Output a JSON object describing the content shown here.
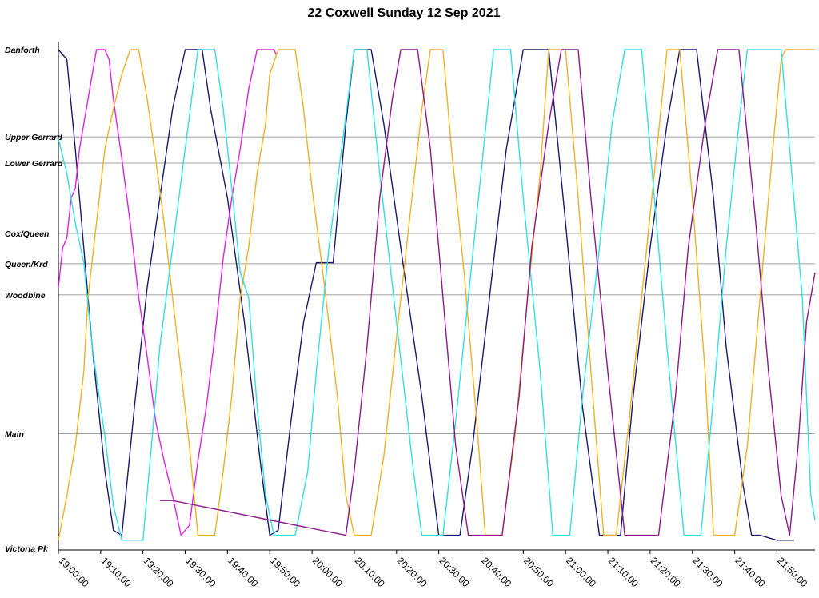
{
  "chart_data": {
    "type": "line",
    "title": "22 Coxwell Sunday 12 Sep 2021",
    "x_axis": {
      "kind": "time",
      "range": [
        "19:00:00",
        "21:59:00"
      ],
      "ticks": [
        "19:00:00",
        "19:10:00",
        "19:20:00",
        "19:30:00",
        "19:40:00",
        "19:50:00",
        "20:00:00",
        "20:10:00",
        "20:20:00",
        "20:30:00",
        "20:40:00",
        "20:50:00",
        "21:00:00",
        "21:10:00",
        "21:20:00",
        "21:30:00",
        "21:40:00",
        "21:50:00"
      ]
    },
    "y_axis": {
      "kind": "stops",
      "stops": [
        {
          "name": "Danforth",
          "pos": 0
        },
        {
          "name": "Upper Gerrard",
          "pos": 0.176
        },
        {
          "name": "Lower Gerrard",
          "pos": 0.229
        },
        {
          "name": "Cox/Queen",
          "pos": 0.371
        },
        {
          "name": "Queen/Krd",
          "pos": 0.432
        },
        {
          "name": "Woodbine",
          "pos": 0.495
        },
        {
          "name": "Main",
          "pos": 0.775
        },
        {
          "name": "Victoria Pk",
          "pos": 1.0
        }
      ],
      "grid": true
    },
    "series": [
      {
        "color": "#1a1a6e",
        "points": [
          [
            "19:00:00",
            0
          ],
          [
            "19:02:00",
            0.02
          ],
          [
            "19:04:00",
            0.2
          ],
          [
            "19:06:00",
            0.4
          ],
          [
            "19:08:00",
            0.6
          ],
          [
            "19:11:00",
            0.85
          ],
          [
            "19:13:00",
            0.97
          ],
          [
            "19:15:00",
            0.98
          ],
          [
            "19:18:00",
            0.72
          ],
          [
            "19:21:00",
            0.48
          ],
          [
            "19:24:00",
            0.3
          ],
          [
            "19:27:00",
            0.12
          ],
          [
            "19:30:00",
            0
          ],
          [
            "19:34:00",
            0
          ],
          [
            "19:36:00",
            0.12
          ],
          [
            "19:40:00",
            0.3
          ],
          [
            "19:44:00",
            0.55
          ],
          [
            "19:48:00",
            0.85
          ],
          [
            "19:50:00",
            0.98
          ],
          [
            "19:52:00",
            0.97
          ],
          [
            "19:55:00",
            0.75
          ],
          [
            "19:58:00",
            0.55
          ],
          [
            "20:01:00",
            0.43
          ],
          [
            "20:05:00",
            0.43
          ],
          [
            "20:08:00",
            0.15
          ],
          [
            "20:10:00",
            0
          ],
          [
            "20:14:00",
            0
          ],
          [
            "20:17:00",
            0.15
          ],
          [
            "20:21:00",
            0.4
          ],
          [
            "20:26:00",
            0.7
          ],
          [
            "20:30:00",
            0.98
          ],
          [
            "20:35:00",
            0.98
          ],
          [
            "20:38:00",
            0.8
          ],
          [
            "20:42:00",
            0.5
          ],
          [
            "20:46:00",
            0.2
          ],
          [
            "20:50:00",
            0
          ],
          [
            "20:56:00",
            0
          ],
          [
            "21:00:00",
            0.35
          ],
          [
            "21:04:00",
            0.72
          ],
          [
            "21:08:00",
            0.98
          ],
          [
            "21:13:00",
            0.98
          ],
          [
            "21:16:00",
            0.7
          ],
          [
            "21:20:00",
            0.4
          ],
          [
            "21:24:00",
            0.15
          ],
          [
            "21:27:00",
            0
          ],
          [
            "21:31:00",
            0
          ],
          [
            "21:35:00",
            0.3
          ],
          [
            "21:38:00",
            0.6
          ],
          [
            "21:42:00",
            0.88
          ],
          [
            "21:44:00",
            0.98
          ],
          [
            "21:46:00",
            0.98
          ],
          [
            "21:50:00",
            0.99
          ],
          [
            "21:54:00",
            0.99
          ]
        ]
      },
      {
        "color": "#e020e0",
        "points": [
          [
            "19:00:00",
            0.48
          ],
          [
            "19:01:00",
            0.4
          ],
          [
            "19:02:00",
            0.38
          ],
          [
            "19:03:00",
            0.3
          ],
          [
            "19:04:00",
            0.28
          ],
          [
            "19:05:00",
            0.2
          ],
          [
            "19:06:00",
            0.15
          ],
          [
            "19:07:00",
            0.1
          ],
          [
            "19:08:00",
            0.05
          ],
          [
            "19:09:00",
            0
          ],
          [
            "19:11:00",
            0
          ],
          [
            "19:12:00",
            0.02
          ],
          [
            "19:13:00",
            0.1
          ],
          [
            "19:15:00",
            0.22
          ],
          [
            "19:17:00",
            0.35
          ],
          [
            "19:19:00",
            0.5
          ],
          [
            "19:21:00",
            0.62
          ],
          [
            "19:23:00",
            0.75
          ],
          [
            "19:25:00",
            0.83
          ],
          [
            "19:27:00",
            0.9
          ],
          [
            "19:29:00",
            0.98
          ],
          [
            "19:31:00",
            0.96
          ],
          [
            "19:33:00",
            0.83
          ],
          [
            "19:35:00",
            0.72
          ],
          [
            "19:37:00",
            0.58
          ],
          [
            "19:39:00",
            0.42
          ],
          [
            "19:41:00",
            0.3
          ],
          [
            "19:43:00",
            0.2
          ],
          [
            "19:45:00",
            0.08
          ],
          [
            "19:47:00",
            0
          ],
          [
            "19:51:00",
            0
          ],
          [
            "19:51:30",
            0.01
          ]
        ]
      },
      {
        "color": "#f0b020",
        "points": [
          [
            "19:00:00",
            0.99
          ],
          [
            "19:02:00",
            0.9
          ],
          [
            "19:04:00",
            0.8
          ],
          [
            "19:06:00",
            0.65
          ],
          [
            "19:07:00",
            0.5
          ],
          [
            "19:09:00",
            0.35
          ],
          [
            "19:11:00",
            0.2
          ],
          [
            "19:13:00",
            0.12
          ],
          [
            "19:15:00",
            0.05
          ],
          [
            "19:17:00",
            0
          ],
          [
            "19:19:00",
            0
          ],
          [
            "19:21:00",
            0.1
          ],
          [
            "19:23:00",
            0.22
          ],
          [
            "19:25:00",
            0.35
          ],
          [
            "19:27:00",
            0.5
          ],
          [
            "19:29:00",
            0.65
          ],
          [
            "19:31:00",
            0.8
          ],
          [
            "19:33:00",
            0.98
          ],
          [
            "19:37:00",
            0.98
          ],
          [
            "19:39:00",
            0.85
          ],
          [
            "19:41:00",
            0.7
          ],
          [
            "19:43:00",
            0.5
          ],
          [
            "19:45:00",
            0.4
          ],
          [
            "19:47:00",
            0.25
          ],
          [
            "19:49:00",
            0.15
          ],
          [
            "19:50:00",
            0.05
          ],
          [
            "19:52:00",
            0
          ],
          [
            "19:56:00",
            0
          ],
          [
            "19:58:00",
            0.12
          ],
          [
            "20:00:00",
            0.28
          ],
          [
            "20:03:00",
            0.48
          ],
          [
            "20:06:00",
            0.7
          ],
          [
            "20:08:00",
            0.9
          ],
          [
            "20:10:00",
            0.98
          ],
          [
            "20:14:00",
            0.98
          ],
          [
            "20:17:00",
            0.82
          ],
          [
            "20:20:00",
            0.58
          ],
          [
            "20:23:00",
            0.35
          ],
          [
            "20:26:00",
            0.12
          ],
          [
            "20:28:00",
            0
          ],
          [
            "20:31:00",
            0
          ],
          [
            "20:33:00",
            0.2
          ],
          [
            "20:36:00",
            0.45
          ],
          [
            "20:39:00",
            0.75
          ],
          [
            "20:41:00",
            0.98
          ],
          [
            "20:45:00",
            0.98
          ],
          [
            "20:48:00",
            0.78
          ],
          [
            "20:51:00",
            0.5
          ],
          [
            "20:54:00",
            0.25
          ],
          [
            "20:56:00",
            0
          ],
          [
            "21:00:00",
            0
          ],
          [
            "21:03:00",
            0.3
          ],
          [
            "21:06:00",
            0.65
          ],
          [
            "21:09:00",
            0.98
          ],
          [
            "21:12:00",
            0.98
          ],
          [
            "21:15:00",
            0.75
          ],
          [
            "21:18:00",
            0.5
          ],
          [
            "21:21:00",
            0.25
          ],
          [
            "21:24:00",
            0
          ],
          [
            "21:27:00",
            0
          ],
          [
            "21:30:00",
            0.3
          ],
          [
            "21:33:00",
            0.65
          ],
          [
            "21:35:00",
            0.98
          ],
          [
            "21:40:00",
            0.98
          ],
          [
            "21:43:00",
            0.8
          ],
          [
            "21:46:00",
            0.5
          ],
          [
            "21:49:00",
            0.2
          ],
          [
            "21:51:00",
            0.02
          ],
          [
            "21:52:00",
            0
          ],
          [
            "21:59:00",
            0
          ]
        ]
      },
      {
        "color": "#30e0e0",
        "points": [
          [
            "19:00:00",
            0.18
          ],
          [
            "19:02:00",
            0.25
          ],
          [
            "19:04:00",
            0.35
          ],
          [
            "19:06:00",
            0.43
          ],
          [
            "19:08:00",
            0.6
          ],
          [
            "19:11:00",
            0.78
          ],
          [
            "19:13:00",
            0.92
          ],
          [
            "19:15:00",
            0.99
          ],
          [
            "19:20:00",
            0.99
          ],
          [
            "19:22:00",
            0.8
          ],
          [
            "19:24:00",
            0.6
          ],
          [
            "19:27:00",
            0.4
          ],
          [
            "19:30:00",
            0.2
          ],
          [
            "19:33:00",
            0
          ],
          [
            "19:37:00",
            0
          ],
          [
            "19:39:00",
            0.12
          ],
          [
            "19:41:00",
            0.28
          ],
          [
            "19:43:00",
            0.45
          ],
          [
            "19:45:00",
            0.5
          ],
          [
            "19:47:00",
            0.72
          ],
          [
            "19:49:00",
            0.9
          ],
          [
            "19:51:00",
            0.98
          ],
          [
            "19:56:00",
            0.98
          ],
          [
            "19:59:00",
            0.85
          ],
          [
            "20:01:00",
            0.65
          ],
          [
            "20:04:00",
            0.4
          ],
          [
            "20:07:00",
            0.2
          ],
          [
            "20:10:00",
            0
          ],
          [
            "20:13:00",
            0
          ],
          [
            "20:16:00",
            0.25
          ],
          [
            "20:20:00",
            0.55
          ],
          [
            "20:24:00",
            0.85
          ],
          [
            "20:26:00",
            0.98
          ],
          [
            "20:31:00",
            0.98
          ],
          [
            "20:34:00",
            0.75
          ],
          [
            "20:37:00",
            0.5
          ],
          [
            "20:40:00",
            0.25
          ],
          [
            "20:43:00",
            0
          ],
          [
            "20:47:00",
            0
          ],
          [
            "20:50:00",
            0.3
          ],
          [
            "20:54:00",
            0.65
          ],
          [
            "20:57:00",
            0.98
          ],
          [
            "21:01:00",
            0.98
          ],
          [
            "21:04:00",
            0.7
          ],
          [
            "21:08:00",
            0.4
          ],
          [
            "21:11:00",
            0.15
          ],
          [
            "21:14:00",
            0
          ],
          [
            "21:18:00",
            0
          ],
          [
            "21:21:00",
            0.3
          ],
          [
            "21:24:00",
            0.6
          ],
          [
            "21:28:00",
            0.98
          ],
          [
            "21:32:00",
            0.98
          ],
          [
            "21:35:00",
            0.7
          ],
          [
            "21:38:00",
            0.4
          ],
          [
            "21:41:00",
            0.15
          ],
          [
            "21:43:00",
            0
          ],
          [
            "21:51:00",
            0
          ],
          [
            "21:53:00",
            0.2
          ],
          [
            "21:56:00",
            0.5
          ],
          [
            "21:58:00",
            0.9
          ],
          [
            "21:59:00",
            0.95
          ]
        ]
      },
      {
        "color": "#8b1a8b",
        "points": [
          [
            "19:24:00",
            0.91
          ],
          [
            "19:27:00",
            0.91
          ],
          [
            "20:08:00",
            0.98
          ],
          [
            "20:10:00",
            0.85
          ],
          [
            "20:13:00",
            0.6
          ],
          [
            "20:16:00",
            0.3
          ],
          [
            "20:19:00",
            0.1
          ],
          [
            "20:21:00",
            0
          ],
          [
            "20:25:00",
            0
          ],
          [
            "20:28:00",
            0.2
          ],
          [
            "20:31:00",
            0.5
          ],
          [
            "20:34:00",
            0.8
          ],
          [
            "20:37:00",
            0.98
          ],
          [
            "20:45:00",
            0.98
          ],
          [
            "20:49:00",
            0.7
          ],
          [
            "20:52:00",
            0.4
          ],
          [
            "20:56:00",
            0.15
          ],
          [
            "20:59:00",
            0
          ],
          [
            "21:03:00",
            0
          ],
          [
            "21:06:00",
            0.3
          ],
          [
            "21:10:00",
            0.65
          ],
          [
            "21:14:00",
            0.98
          ],
          [
            "21:22:00",
            0.98
          ],
          [
            "21:26:00",
            0.7
          ],
          [
            "21:29:00",
            0.4
          ],
          [
            "21:33:00",
            0.15
          ],
          [
            "21:36:00",
            0
          ],
          [
            "21:41:00",
            0
          ],
          [
            "21:45:00",
            0.35
          ],
          [
            "21:48:00",
            0.65
          ],
          [
            "21:51:00",
            0.9
          ],
          [
            "21:53:00",
            0.98
          ],
          [
            "21:55:00",
            0.8
          ],
          [
            "21:57:00",
            0.55
          ],
          [
            "21:59:00",
            0.45
          ]
        ]
      }
    ]
  }
}
